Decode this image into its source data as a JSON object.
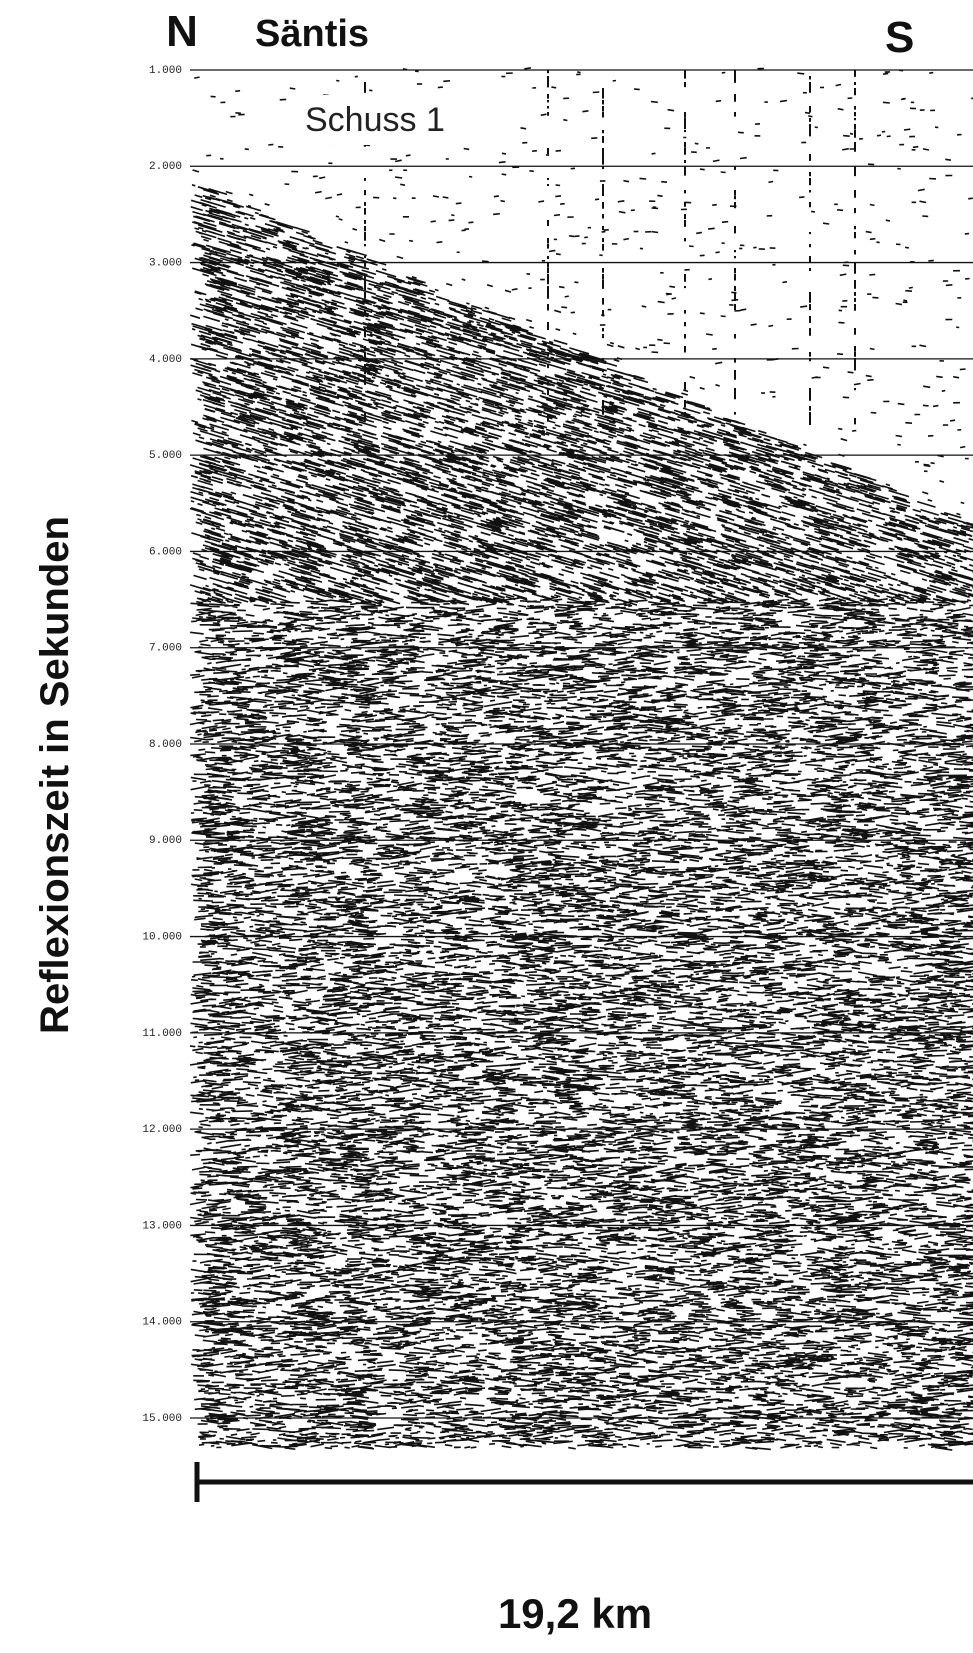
{
  "header": {
    "left_marker": "N",
    "location": "Säntis",
    "right_marker": "S"
  },
  "annotation": "Schuss 1",
  "axis": {
    "label": "Reflexionszeit in Sekunden",
    "ticks": [
      "1.000",
      "2.000",
      "3.000",
      "4.000",
      "5.000",
      "6.000",
      "7.000",
      "8.000",
      "9.000",
      "10.000",
      "11.000",
      "12.000",
      "13.000",
      "14.000",
      "15.000"
    ]
  },
  "scale_bar": {
    "label": "19,2 km"
  }
}
